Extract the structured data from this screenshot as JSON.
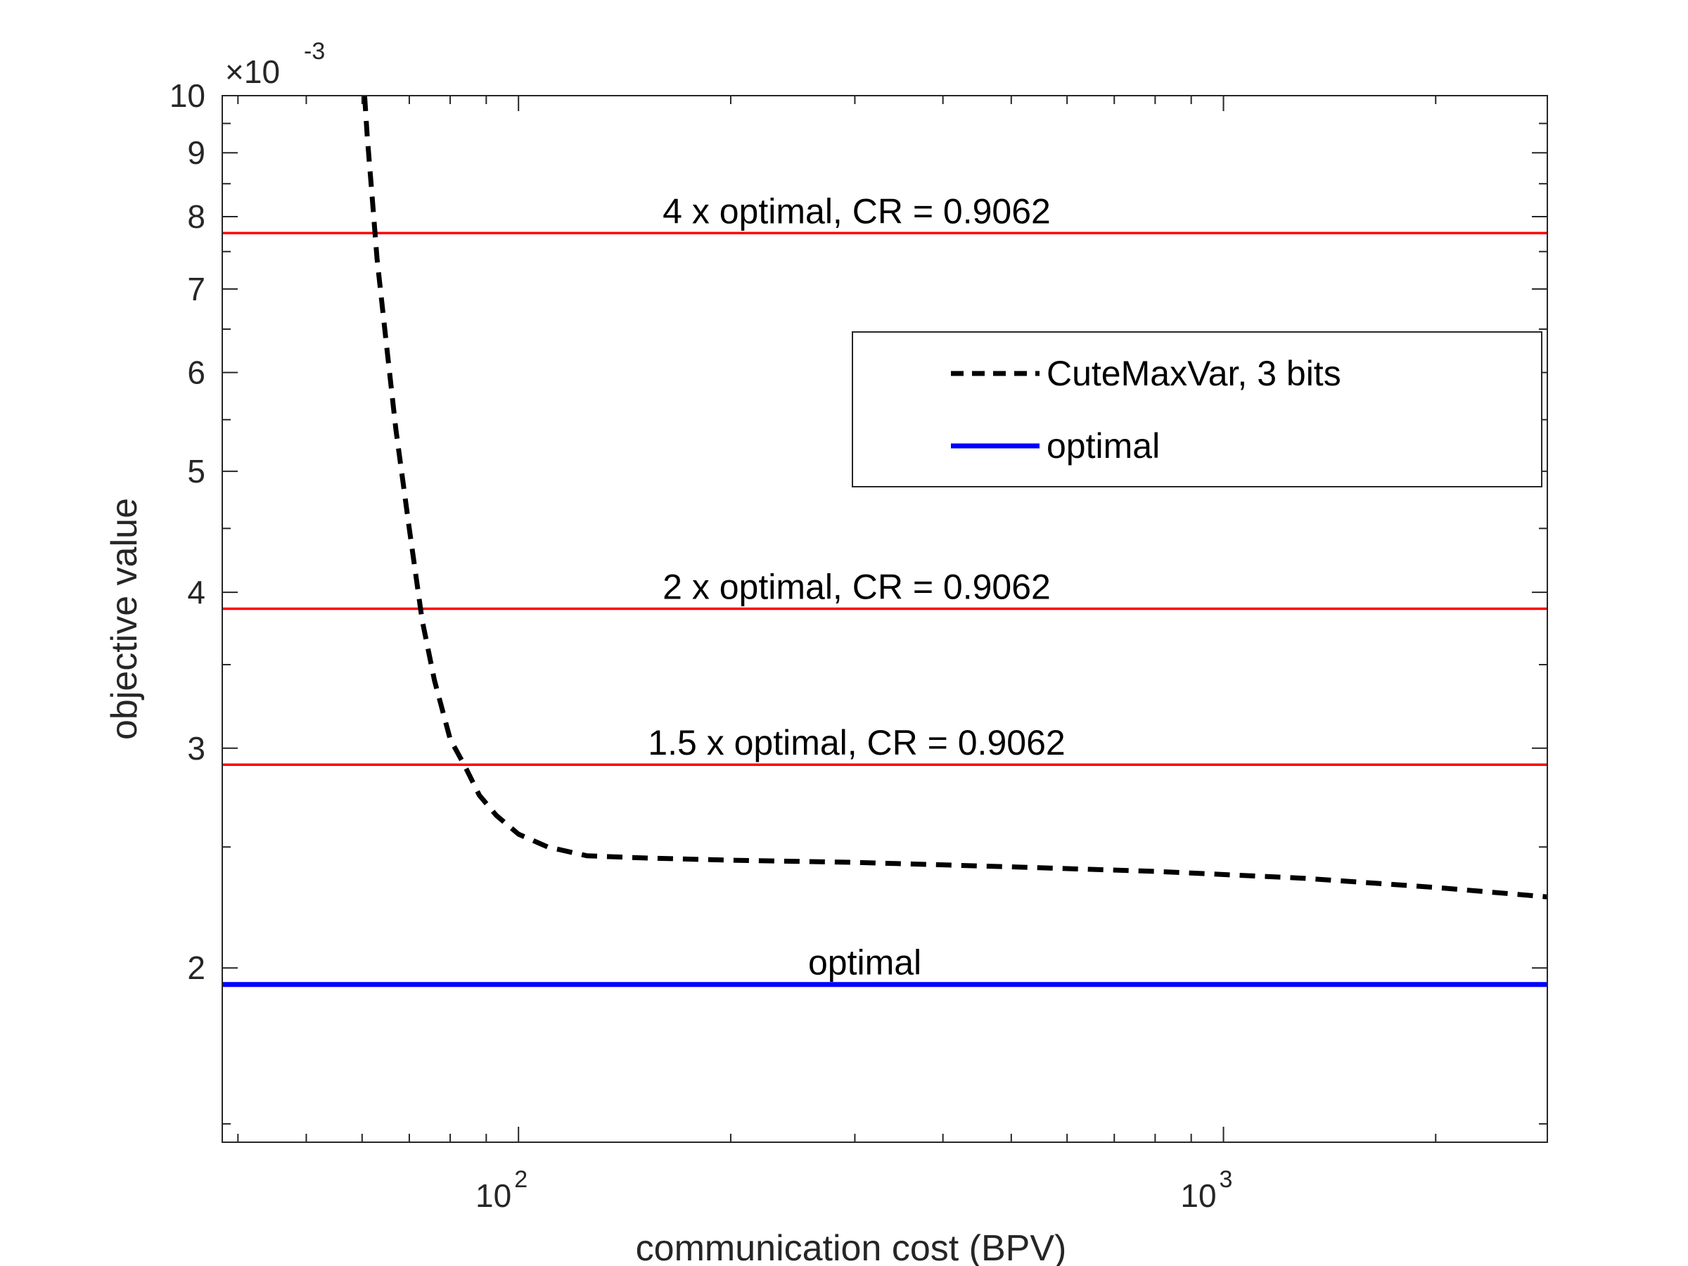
{
  "chart_data": {
    "type": "line",
    "xlabel": "communication cost (BPV)",
    "ylabel": "objective value",
    "x_scale": "log",
    "y_scale": "log",
    "xlim": [
      38,
      2880
    ],
    "ylim": [
      0.00145,
      0.01
    ],
    "y_exponent_label": "×10",
    "y_exponent_power": "-3",
    "y_ticks": [
      {
        "value": 0.002,
        "label": "2"
      },
      {
        "value": 0.003,
        "label": "3"
      },
      {
        "value": 0.004,
        "label": "4"
      },
      {
        "value": 0.005,
        "label": "5"
      },
      {
        "value": 0.006,
        "label": "6"
      },
      {
        "value": 0.007,
        "label": "7"
      },
      {
        "value": 0.008,
        "label": "8"
      },
      {
        "value": 0.009,
        "label": "9"
      },
      {
        "value": 0.01,
        "label": "10"
      }
    ],
    "y_minor_ticks": [
      0.0015,
      0.0025,
      0.0035,
      0.0045,
      0.0055,
      0.0065,
      0.0075,
      0.0085,
      0.0095
    ],
    "x_ticks": [
      {
        "value": 100,
        "base": "10",
        "power": "2"
      },
      {
        "value": 1000,
        "base": "10",
        "power": "3"
      }
    ],
    "x_minor_ticks": [
      40,
      50,
      60,
      70,
      80,
      90,
      200,
      300,
      400,
      500,
      600,
      700,
      800,
      900,
      2000
    ],
    "grid": false,
    "legend_position": "top-right",
    "series": [
      {
        "name": "CuteMaxVar, 3 bits",
        "style": "dashed",
        "color": "#000000",
        "x": [
          60.5,
          61,
          62,
          63,
          65,
          67,
          70,
          73,
          76,
          80,
          84,
          88,
          93,
          100,
          110,
          125,
          150,
          200,
          300,
          500,
          800,
          1300,
          2000,
          2880
        ],
        "y": [
          0.01,
          0.0093,
          0.0083,
          0.0074,
          0.0063,
          0.0054,
          0.0045,
          0.0038,
          0.0034,
          0.00305,
          0.0029,
          0.00275,
          0.00265,
          0.00256,
          0.0025,
          0.00246,
          0.00245,
          0.00244,
          0.00243,
          0.00241,
          0.00239,
          0.00236,
          0.00232,
          0.00228
        ]
      },
      {
        "name": "optimal",
        "style": "solid",
        "color": "#0000ff",
        "x": [
          38,
          2880
        ],
        "y": [
          0.00194,
          0.00194
        ]
      }
    ],
    "reference_lines": [
      {
        "y": 0.00776,
        "label": "4 x optimal, CR = 0.9062",
        "color": "#ff0000"
      },
      {
        "y": 0.00388,
        "label": "2 x optimal, CR = 0.9062",
        "color": "#ff0000"
      },
      {
        "y": 0.00291,
        "label": "1.5 x optimal, CR = 0.9062",
        "color": "#ff0000"
      }
    ],
    "annotations": [
      {
        "text": "optimal",
        "x": 270,
        "y": 0.00194
      }
    ]
  }
}
